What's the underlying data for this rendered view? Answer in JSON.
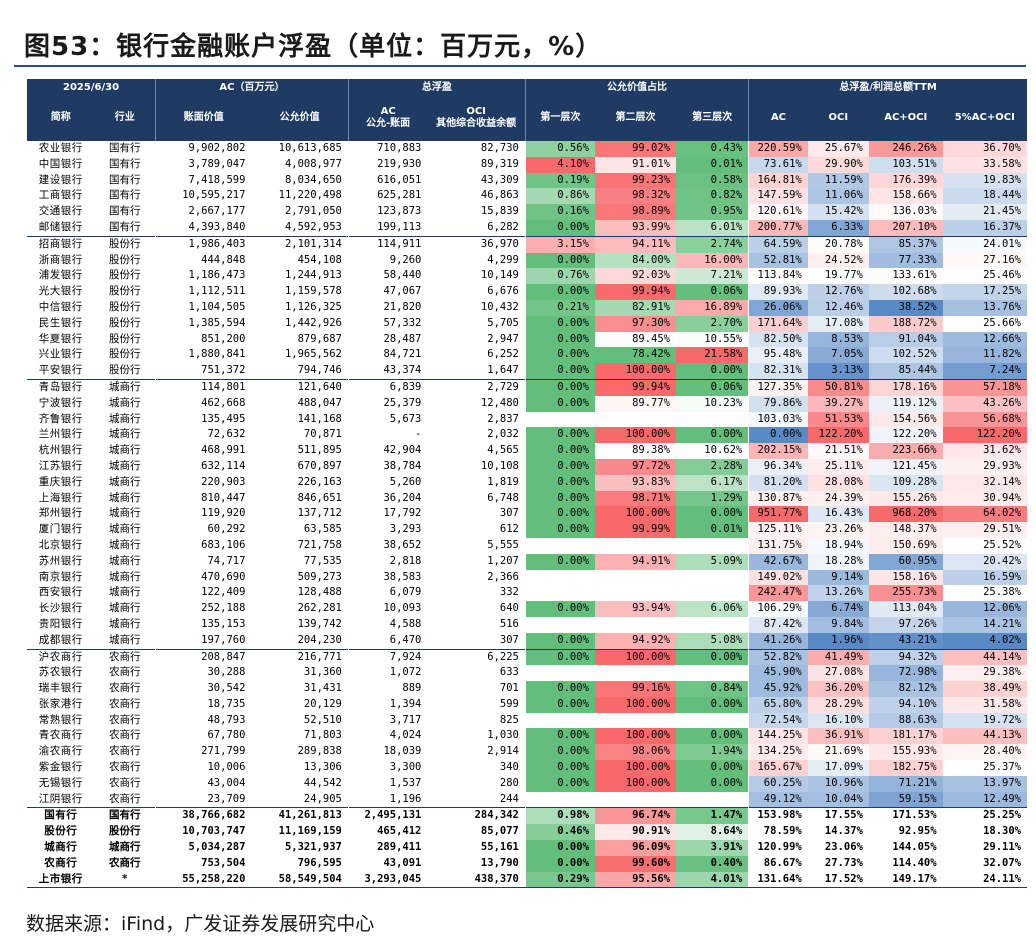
{
  "title": "图53：银行金融账户浮盈（单位：百万元，%）",
  "source": "数据来源：iFind，广发证券发展研究中心",
  "header": {
    "date": "2025/6/30",
    "group_ac": "AC（百万元）",
    "group_float": "总浮盈",
    "group_fv": "公允价值占比",
    "group_ttm": "总浮盈/利润总额TTM",
    "cols": [
      "简称",
      "行业",
      "账面价值",
      "公允价值",
      "AC\n公允-账面",
      "OCI\n其他综合收益余额",
      "第一层次",
      "第二层次",
      "第三层次",
      "AC",
      "OCI",
      "AC+OCI",
      "5%AC+OCI"
    ]
  },
  "groups": [
    {
      "rows": [
        [
          "农业银行",
          "国有行",
          "9,902,802",
          "10,613,685",
          "710,883",
          "82,730",
          "0.56%",
          "99.02%",
          "0.43%",
          "220.59%",
          "25.67%",
          "246.26%",
          "36.70%"
        ],
        [
          "中国银行",
          "国有行",
          "3,789,047",
          "4,008,977",
          "219,930",
          "89,319",
          "4.10%",
          "91.01%",
          "0.01%",
          "73.61%",
          "29.90%",
          "103.51%",
          "33.58%"
        ],
        [
          "建设银行",
          "国有行",
          "7,418,599",
          "8,034,650",
          "616,051",
          "43,309",
          "0.19%",
          "99.23%",
          "0.58%",
          "164.81%",
          "11.59%",
          "176.39%",
          "19.83%"
        ],
        [
          "工商银行",
          "国有行",
          "10,595,217",
          "11,220,498",
          "625,281",
          "46,863",
          "0.86%",
          "98.32%",
          "0.82%",
          "147.59%",
          "11.06%",
          "158.66%",
          "18.44%"
        ],
        [
          "交通银行",
          "国有行",
          "2,667,177",
          "2,791,050",
          "123,873",
          "15,839",
          "0.16%",
          "98.89%",
          "0.95%",
          "120.61%",
          "15.42%",
          "136.03%",
          "21.45%"
        ],
        [
          "邮储银行",
          "国有行",
          "4,393,840",
          "4,592,953",
          "199,113",
          "6,282",
          "0.00%",
          "93.99%",
          "6.01%",
          "200.77%",
          "6.33%",
          "207.10%",
          "16.37%"
        ]
      ]
    },
    {
      "rows": [
        [
          "招商银行",
          "股份行",
          "1,986,403",
          "2,101,314",
          "114,911",
          "36,970",
          "3.15%",
          "94.11%",
          "2.74%",
          "64.59%",
          "20.78%",
          "85.37%",
          "24.01%"
        ],
        [
          "浙商银行",
          "股份行",
          "444,848",
          "454,108",
          "9,260",
          "4,299",
          "0.00%",
          "84.00%",
          "16.00%",
          "52.81%",
          "24.52%",
          "77.33%",
          "27.16%"
        ],
        [
          "浦发银行",
          "股份行",
          "1,186,473",
          "1,244,913",
          "58,440",
          "10,149",
          "0.76%",
          "92.03%",
          "7.21%",
          "113.84%",
          "19.77%",
          "133.61%",
          "25.46%"
        ],
        [
          "光大银行",
          "股份行",
          "1,112,511",
          "1,159,578",
          "47,067",
          "6,676",
          "0.00%",
          "99.94%",
          "0.06%",
          "89.93%",
          "12.76%",
          "102.68%",
          "17.25%"
        ],
        [
          "中信银行",
          "股份行",
          "1,104,505",
          "1,126,325",
          "21,820",
          "10,432",
          "0.21%",
          "82.91%",
          "16.89%",
          "26.06%",
          "12.46%",
          "38.52%",
          "13.76%"
        ],
        [
          "民生银行",
          "股份行",
          "1,385,594",
          "1,442,926",
          "57,332",
          "5,705",
          "0.00%",
          "97.30%",
          "2.70%",
          "171.64%",
          "17.08%",
          "188.72%",
          "25.66%"
        ],
        [
          "华夏银行",
          "股份行",
          "851,200",
          "879,687",
          "28,487",
          "2,947",
          "0.00%",
          "89.45%",
          "10.55%",
          "82.50%",
          "8.53%",
          "91.04%",
          "12.66%"
        ],
        [
          "兴业银行",
          "股份行",
          "1,880,841",
          "1,965,562",
          "84,721",
          "6,252",
          "0.00%",
          "78.42%",
          "21.58%",
          "95.48%",
          "7.05%",
          "102.52%",
          "11.82%"
        ],
        [
          "平安银行",
          "股份行",
          "751,372",
          "794,746",
          "43,374",
          "1,647",
          "0.00%",
          "100.00%",
          "0.00%",
          "82.31%",
          "3.13%",
          "85.44%",
          "7.24%"
        ]
      ]
    },
    {
      "rows": [
        [
          "青岛银行",
          "城商行",
          "114,801",
          "121,640",
          "6,839",
          "2,729",
          "0.00%",
          "99.94%",
          "0.06%",
          "127.35%",
          "50.81%",
          "178.16%",
          "57.18%"
        ],
        [
          "宁波银行",
          "城商行",
          "462,668",
          "488,047",
          "25,379",
          "12,480",
          "0.00%",
          "89.77%",
          "10.23%",
          "79.86%",
          "39.27%",
          "119.12%",
          "43.26%"
        ],
        [
          "齐鲁银行",
          "城商行",
          "135,495",
          "141,168",
          "5,673",
          "2,837",
          "",
          "",
          "",
          "103.03%",
          "51.53%",
          "154.56%",
          "56.68%"
        ],
        [
          "兰州银行",
          "城商行",
          "72,632",
          "70,871",
          "-",
          "2,032",
          "0.00%",
          "100.00%",
          "0.00%",
          "0.00%",
          "122.20%",
          "122.20%",
          "122.20%"
        ],
        [
          "杭州银行",
          "城商行",
          "468,991",
          "511,895",
          "42,904",
          "4,565",
          "0.00%",
          "89.38%",
          "10.62%",
          "202.15%",
          "21.51%",
          "223.66%",
          "31.62%"
        ],
        [
          "江苏银行",
          "城商行",
          "632,114",
          "670,897",
          "38,784",
          "10,108",
          "0.00%",
          "97.72%",
          "2.28%",
          "96.34%",
          "25.11%",
          "121.45%",
          "29.93%"
        ],
        [
          "重庆银行",
          "城商行",
          "220,903",
          "226,163",
          "5,260",
          "1,819",
          "0.00%",
          "93.83%",
          "6.17%",
          "81.20%",
          "28.08%",
          "109.28%",
          "32.14%"
        ],
        [
          "上海银行",
          "城商行",
          "810,447",
          "846,651",
          "36,204",
          "6,748",
          "0.00%",
          "98.71%",
          "1.29%",
          "130.87%",
          "24.39%",
          "155.26%",
          "30.94%"
        ],
        [
          "郑州银行",
          "城商行",
          "119,920",
          "137,712",
          "17,792",
          "307",
          "0.00%",
          "100.00%",
          "0.00%",
          "951.77%",
          "16.43%",
          "968.20%",
          "64.02%"
        ],
        [
          "厦门银行",
          "城商行",
          "60,292",
          "63,585",
          "3,293",
          "612",
          "0.00%",
          "99.99%",
          "0.01%",
          "125.11%",
          "23.26%",
          "148.37%",
          "29.51%"
        ],
        [
          "北京银行",
          "城商行",
          "683,106",
          "721,758",
          "38,652",
          "5,555",
          "",
          "",
          "",
          "131.75%",
          "18.94%",
          "150.69%",
          "25.52%"
        ],
        [
          "苏州银行",
          "城商行",
          "74,717",
          "77,535",
          "2,818",
          "1,207",
          "0.00%",
          "94.91%",
          "5.09%",
          "42.67%",
          "18.28%",
          "60.95%",
          "20.42%"
        ],
        [
          "南京银行",
          "城商行",
          "470,690",
          "509,273",
          "38,583",
          "2,366",
          "",
          "",
          "",
          "149.02%",
          "9.14%",
          "158.16%",
          "16.59%"
        ],
        [
          "西安银行",
          "城商行",
          "122,409",
          "128,488",
          "6,079",
          "332",
          "",
          "",
          "",
          "242.47%",
          "13.26%",
          "255.73%",
          "25.38%"
        ],
        [
          "长沙银行",
          "城商行",
          "252,188",
          "262,281",
          "10,093",
          "640",
          "0.00%",
          "93.94%",
          "6.06%",
          "106.29%",
          "6.74%",
          "113.04%",
          "12.06%"
        ],
        [
          "贵阳银行",
          "城商行",
          "135,153",
          "139,742",
          "4,588",
          "516",
          "",
          "",
          "",
          "87.42%",
          "9.84%",
          "97.26%",
          "14.21%"
        ],
        [
          "成都银行",
          "城商行",
          "197,760",
          "204,230",
          "6,470",
          "307",
          "0.00%",
          "94.92%",
          "5.08%",
          "41.26%",
          "1.96%",
          "43.21%",
          "4.02%"
        ]
      ]
    },
    {
      "rows": [
        [
          "沪农商行",
          "农商行",
          "208,847",
          "216,771",
          "7,924",
          "6,225",
          "0.00%",
          "100.00%",
          "0.00%",
          "52.82%",
          "41.49%",
          "94.32%",
          "44.14%"
        ],
        [
          "苏农银行",
          "农商行",
          "30,288",
          "31,360",
          "1,072",
          "633",
          "",
          "",
          "",
          "45.90%",
          "27.08%",
          "72.98%",
          "29.38%"
        ],
        [
          "瑞丰银行",
          "农商行",
          "30,542",
          "31,431",
          "889",
          "701",
          "0.00%",
          "99.16%",
          "0.84%",
          "45.92%",
          "36.20%",
          "82.12%",
          "38.49%"
        ],
        [
          "张家港行",
          "农商行",
          "18,735",
          "20,129",
          "1,394",
          "599",
          "0.00%",
          "100.00%",
          "0.00%",
          "65.80%",
          "28.29%",
          "94.10%",
          "31.58%"
        ],
        [
          "常熟银行",
          "农商行",
          "48,793",
          "52,510",
          "3,717",
          "825",
          "",
          "",
          "",
          "72.54%",
          "16.10%",
          "88.63%",
          "19.72%"
        ],
        [
          "青农商行",
          "农商行",
          "67,780",
          "71,803",
          "4,024",
          "1,030",
          "0.00%",
          "100.00%",
          "0.00%",
          "144.25%",
          "36.91%",
          "181.17%",
          "44.13%"
        ],
        [
          "渝农商行",
          "农商行",
          "271,799",
          "289,838",
          "18,039",
          "2,914",
          "0.00%",
          "98.06%",
          "1.94%",
          "134.25%",
          "21.69%",
          "155.93%",
          "28.40%"
        ],
        [
          "紫金银行",
          "农商行",
          "10,006",
          "13,306",
          "3,300",
          "340",
          "0.00%",
          "100.00%",
          "0.00%",
          "165.67%",
          "17.09%",
          "182.75%",
          "25.37%"
        ],
        [
          "无锡银行",
          "农商行",
          "43,004",
          "44,542",
          "1,537",
          "280",
          "0.00%",
          "100.00%",
          "0.00%",
          "60.25%",
          "10.96%",
          "71.21%",
          "13.97%"
        ],
        [
          "江阴银行",
          "农商行",
          "23,709",
          "24,905",
          "1,196",
          "244",
          "",
          "",
          "",
          "49.12%",
          "10.04%",
          "59.15%",
          "12.49%"
        ]
      ]
    }
  ],
  "totals": [
    [
      "国有行",
      "国有行",
      "38,766,682",
      "41,261,813",
      "2,495,131",
      "284,342",
      "0.98%",
      "96.74%",
      "1.47%",
      "153.98%",
      "17.55%",
      "171.53%",
      "25.25%"
    ],
    [
      "股份行",
      "股份行",
      "10,703,747",
      "11,169,159",
      "465,412",
      "85,077",
      "0.46%",
      "90.91%",
      "8.64%",
      "78.59%",
      "14.37%",
      "92.95%",
      "18.30%"
    ],
    [
      "城商行",
      "城商行",
      "5,034,287",
      "5,321,937",
      "289,411",
      "55,161",
      "0.00%",
      "96.09%",
      "3.91%",
      "120.99%",
      "23.06%",
      "144.05%",
      "29.11%"
    ],
    [
      "农商行",
      "农商行",
      "753,504",
      "796,595",
      "43,091",
      "13,790",
      "0.00%",
      "99.60%",
      "0.40%",
      "86.67%",
      "27.73%",
      "114.40%",
      "32.07%"
    ],
    [
      "上市银行",
      "*",
      "55,258,220",
      "58,549,504",
      "3,293,045",
      "438,370",
      "0.29%",
      "95.56%",
      "4.01%",
      "131.64%",
      "17.52%",
      "149.17%",
      "24.11%"
    ]
  ]
}
